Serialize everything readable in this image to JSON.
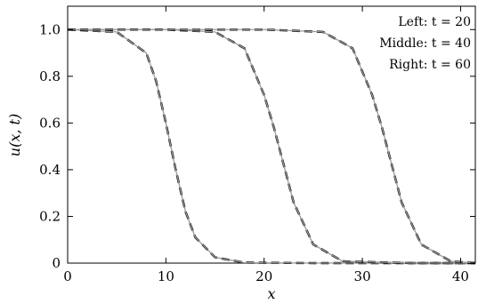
{
  "chart_data": {
    "type": "line",
    "xlabel": "x",
    "ylabel": "u(x, t)",
    "xlim": [
      0,
      41.5
    ],
    "ylim": [
      0,
      1.1
    ],
    "x_ticks": [
      0,
      10,
      20,
      30,
      40
    ],
    "y_ticks": [
      0,
      0.2,
      0.4,
      0.6,
      0.8,
      1.0
    ],
    "x_tick_labels": [
      "0",
      "10",
      "20",
      "30",
      "40"
    ],
    "y_tick_labels": [
      "0",
      "0.2",
      "0.4",
      "0.6",
      "0.8",
      "1.0"
    ],
    "grid": false,
    "legend_position": "top-right",
    "annotations": [
      "Left: t = 20",
      "Middle: t = 40",
      "Right: t = 60"
    ],
    "series": [
      {
        "style": "dashed-black",
        "x": [
          0,
          5,
          8,
          9,
          10,
          10.5,
          11,
          12,
          13,
          15,
          18,
          25,
          30,
          41.5
        ],
        "y": [
          1.0,
          0.99,
          0.9,
          0.78,
          0.6,
          0.5,
          0.4,
          0.22,
          0.11,
          0.025,
          0.002,
          0.0,
          0.0,
          0.0
        ]
      },
      {
        "style": "solid-gray",
        "x": [
          0,
          5,
          8,
          9,
          10,
          10.5,
          11,
          12,
          13,
          15,
          18,
          25,
          30,
          41.5
        ],
        "y": [
          1.0,
          0.99,
          0.9,
          0.78,
          0.6,
          0.5,
          0.4,
          0.22,
          0.11,
          0.025,
          0.002,
          0.0,
          0.0,
          0.0
        ]
      },
      {
        "style": "dashed-black",
        "x": [
          0,
          10,
          15,
          18,
          20,
          21,
          21.5,
          22,
          23,
          25,
          28,
          35,
          41.5
        ],
        "y": [
          1.0,
          1.0,
          0.99,
          0.92,
          0.72,
          0.58,
          0.5,
          0.42,
          0.26,
          0.08,
          0.008,
          0.0,
          0.0
        ]
      },
      {
        "style": "solid-gray",
        "x": [
          0,
          10,
          15,
          18,
          20,
          21,
          21.5,
          22,
          23,
          25,
          28,
          35,
          41.5
        ],
        "y": [
          1.0,
          1.0,
          0.99,
          0.92,
          0.72,
          0.58,
          0.5,
          0.42,
          0.26,
          0.08,
          0.008,
          0.0,
          0.0
        ]
      },
      {
        "style": "dashed-black",
        "x": [
          0,
          20,
          26,
          29,
          31,
          32,
          32.5,
          33,
          34,
          36,
          39,
          41.5
        ],
        "y": [
          1.0,
          1.0,
          0.99,
          0.92,
          0.72,
          0.58,
          0.5,
          0.42,
          0.26,
          0.08,
          0.008,
          0.0
        ]
      },
      {
        "style": "solid-gray",
        "x": [
          0,
          20,
          26,
          29,
          31,
          32,
          32.5,
          33,
          34,
          36,
          39,
          41.5
        ],
        "y": [
          1.0,
          1.0,
          0.99,
          0.92,
          0.72,
          0.58,
          0.5,
          0.42,
          0.26,
          0.08,
          0.008,
          0.0
        ]
      }
    ]
  }
}
